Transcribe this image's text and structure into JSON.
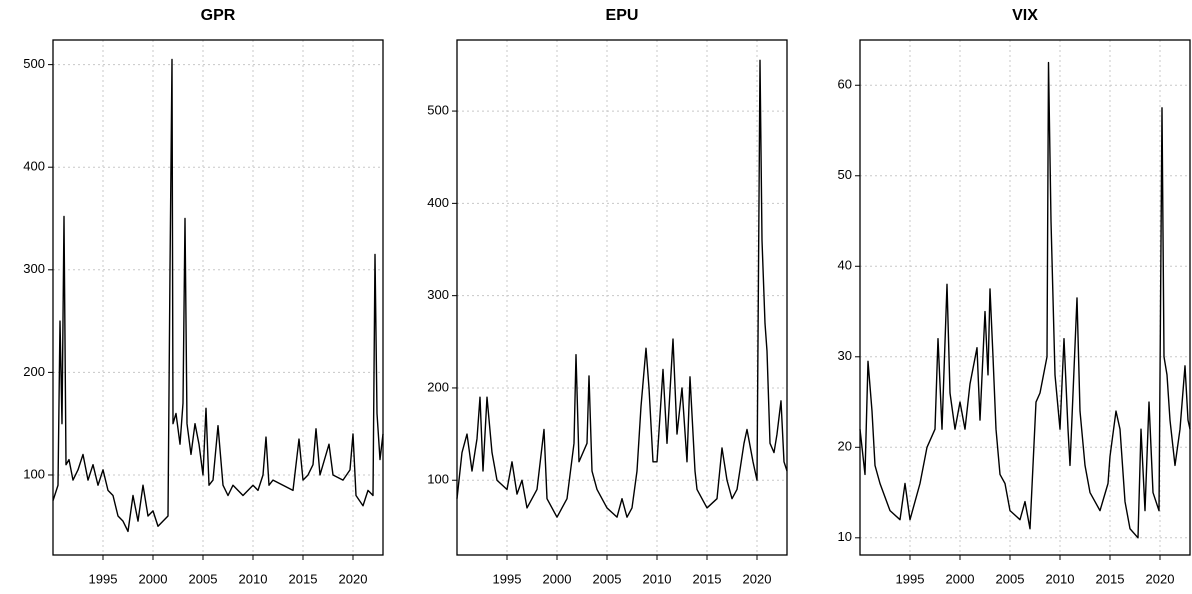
{
  "chart_data": [
    {
      "type": "line",
      "title": "GPR",
      "color": "#000000",
      "grid": true,
      "xlim": [
        1990,
        2023
      ],
      "ylim": [
        22,
        524
      ],
      "xticks": [
        1995,
        2000,
        2005,
        2010,
        2015,
        2020
      ],
      "yticks": [
        100,
        200,
        300,
        400,
        500
      ],
      "x": [
        1990.0,
        1990.5,
        1990.7,
        1990.9,
        1991.1,
        1991.3,
        1991.6,
        1992,
        1992.5,
        1993,
        1993.5,
        1994,
        1994.5,
        1995,
        1995.5,
        1996,
        1996.5,
        1997,
        1997.5,
        1998,
        1998.5,
        1999,
        1999.5,
        2000,
        2000.5,
        2001,
        2001.5,
        2001.7,
        2001.9,
        2002.0,
        2002.3,
        2002.7,
        2003.0,
        2003.2,
        2003.4,
        2003.8,
        2004.2,
        2004.6,
        2005,
        2005.3,
        2005.6,
        2006,
        2006.5,
        2007,
        2007.5,
        2008,
        2009,
        2010,
        2010.5,
        2011,
        2011.3,
        2011.6,
        2012,
        2013,
        2014,
        2014.6,
        2015,
        2015.5,
        2016,
        2016.3,
        2016.7,
        2017,
        2017.6,
        2018,
        2019,
        2019.7,
        2020,
        2020.3,
        2021,
        2021.5,
        2022.0,
        2022.2,
        2022.4,
        2022.7,
        2023
      ],
      "values": [
        75,
        90,
        250,
        150,
        352,
        110,
        115,
        95,
        105,
        120,
        95,
        110,
        90,
        105,
        85,
        80,
        60,
        55,
        45,
        80,
        55,
        90,
        60,
        65,
        50,
        55,
        60,
        300,
        505,
        150,
        160,
        130,
        170,
        350,
        150,
        120,
        150,
        130,
        100,
        165,
        90,
        95,
        148,
        90,
        80,
        90,
        80,
        90,
        85,
        100,
        137,
        90,
        95,
        90,
        85,
        135,
        95,
        100,
        110,
        145,
        100,
        110,
        130,
        100,
        95,
        105,
        140,
        80,
        70,
        85,
        80,
        315,
        160,
        115,
        140
      ]
    },
    {
      "type": "line",
      "title": "EPU",
      "color": "#000000",
      "grid": true,
      "xlim": [
        1990,
        2023
      ],
      "ylim": [
        19,
        577
      ],
      "xticks": [
        1995,
        2000,
        2005,
        2010,
        2015,
        2020
      ],
      "yticks": [
        100,
        200,
        300,
        400,
        500
      ],
      "x": [
        1990,
        1990.5,
        1991,
        1991.5,
        1992,
        1992.3,
        1992.6,
        1993,
        1993.5,
        1994,
        1995,
        1995.5,
        1996,
        1996.5,
        1997,
        1998,
        1998.7,
        1999,
        2000,
        2001,
        2001.7,
        2001.9,
        2002.2,
        2003,
        2003.2,
        2003.5,
        2004,
        2005,
        2006,
        2006.5,
        2007,
        2007.5,
        2008,
        2008.4,
        2008.9,
        2009.2,
        2009.6,
        2010,
        2010.6,
        2011,
        2011.6,
        2012,
        2012.5,
        2013,
        2013.3,
        2013.8,
        2014,
        2015,
        2016,
        2016.5,
        2017,
        2017.5,
        2018,
        2018.7,
        2019,
        2019.6,
        2020.0,
        2020.3,
        2020.5,
        2020.8,
        2021,
        2021.3,
        2021.7,
        2022,
        2022.4,
        2022.7,
        2023
      ],
      "values": [
        80,
        130,
        150,
        110,
        145,
        190,
        110,
        190,
        130,
        100,
        90,
        120,
        85,
        100,
        70,
        90,
        155,
        80,
        60,
        80,
        140,
        236,
        120,
        140,
        213,
        110,
        90,
        70,
        60,
        80,
        60,
        70,
        110,
        180,
        243,
        200,
        120,
        120,
        220,
        140,
        253,
        150,
        200,
        120,
        212,
        110,
        90,
        70,
        80,
        135,
        100,
        80,
        90,
        140,
        155,
        120,
        100,
        555,
        360,
        270,
        240,
        140,
        130,
        150,
        186,
        120,
        110
      ]
    },
    {
      "type": "line",
      "title": "VIX",
      "color": "#000000",
      "grid": true,
      "xlim": [
        1990,
        2023
      ],
      "ylim": [
        8.1,
        65
      ],
      "xticks": [
        1995,
        2000,
        2005,
        2010,
        2015,
        2020
      ],
      "yticks": [
        10,
        20,
        30,
        40,
        50,
        60
      ],
      "x": [
        1990,
        1990.5,
        1990.8,
        1991.2,
        1991.5,
        1992,
        1993,
        1994,
        1994.5,
        1995,
        1996,
        1996.7,
        1997.5,
        1997.8,
        1998.2,
        1998.7,
        1999,
        1999.5,
        2000,
        2000.5,
        2001,
        2001.7,
        2002,
        2002.5,
        2002.8,
        2003,
        2003.3,
        2003.6,
        2004,
        2004.5,
        2005,
        2006,
        2006.5,
        2007,
        2007.6,
        2008,
        2008.7,
        2008.85,
        2009.1,
        2009.5,
        2010,
        2010.4,
        2010.8,
        2011,
        2011.7,
        2012,
        2012.5,
        2013,
        2014,
        2014.8,
        2015,
        2015.6,
        2016,
        2016.5,
        2017,
        2017.8,
        2018.1,
        2018.5,
        2018.9,
        2019.3,
        2019.9,
        2020.2,
        2020.4,
        2020.7,
        2021,
        2021.5,
        2022,
        2022.5,
        2022.8,
        2023
      ],
      "values": [
        22,
        17,
        29.5,
        24,
        18,
        16,
        13,
        12,
        16,
        12,
        16,
        20,
        22,
        32,
        22,
        38,
        26,
        22,
        25,
        22,
        27,
        31,
        23,
        35,
        28,
        37.5,
        30,
        22,
        17,
        16,
        13,
        12,
        14,
        11,
        25,
        26,
        30,
        62.5,
        45,
        28,
        22,
        32,
        22,
        18,
        36.5,
        24,
        18,
        15,
        13,
        16,
        19,
        24,
        22,
        14,
        11,
        10,
        22,
        13,
        25,
        15,
        13,
        57.5,
        30,
        28,
        23,
        18,
        22,
        29,
        23,
        22
      ]
    }
  ]
}
